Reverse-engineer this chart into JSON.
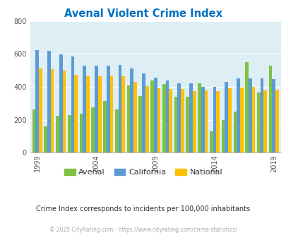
{
  "title": "Avenal Violent Crime Index",
  "subtitle": "Crime Index corresponds to incidents per 100,000 inhabitants",
  "footer": "© 2025 CityRating.com - https://www.cityrating.com/crime-statistics/",
  "years": [
    1999,
    2000,
    2001,
    2002,
    2003,
    2004,
    2005,
    2006,
    2007,
    2008,
    2009,
    2010,
    2011,
    2012,
    2013,
    2014,
    2015,
    2016,
    2017,
    2018,
    2019,
    2020
  ],
  "avenal": [
    262,
    160,
    225,
    230,
    235,
    275,
    315,
    263,
    408,
    345,
    438,
    415,
    340,
    340,
    420,
    128,
    200,
    250,
    548,
    365,
    530,
    0
  ],
  "california": [
    623,
    620,
    595,
    585,
    530,
    530,
    530,
    533,
    510,
    480,
    454,
    440,
    422,
    422,
    400,
    400,
    430,
    450,
    450,
    450,
    447,
    0
  ],
  "national": [
    511,
    507,
    500,
    473,
    465,
    463,
    469,
    464,
    428,
    404,
    390,
    388,
    385,
    373,
    380,
    373,
    390,
    395,
    400,
    380,
    383,
    0
  ],
  "bar_colors": {
    "avenal": "#7dc242",
    "california": "#5b9bd5",
    "national": "#ffc000"
  },
  "bg_color": "#ddeef5",
  "ylim": [
    0,
    800
  ],
  "yticks": [
    0,
    200,
    400,
    600,
    800
  ],
  "title_color": "#0070c0",
  "subtitle_color": "#333333",
  "footer_color": "#aaaaaa",
  "bar_width": 0.28,
  "tick_label_years": [
    1999,
    2004,
    2009,
    2014,
    2019
  ]
}
